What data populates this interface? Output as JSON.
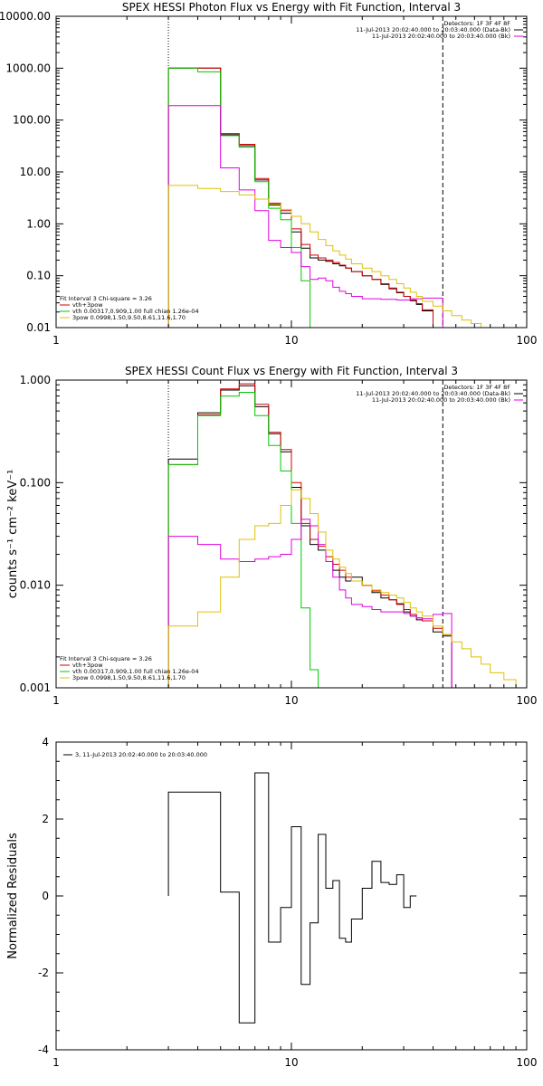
{
  "chart_data": [
    {
      "type": "line",
      "title": "SPEX HESSI Photon Flux vs Energy with Fit Function, Interval 3",
      "ylabel": "",
      "xlabel": "",
      "xscale": "log",
      "yscale": "log",
      "xlim": [
        1,
        100
      ],
      "ylim": [
        0.01,
        10000
      ],
      "xtick_labels": [
        "1",
        "10",
        "100"
      ],
      "ytick_labels": [
        "0.01",
        "0.10",
        "1.00",
        "10.00",
        "100.00",
        "1000.00",
        "10000.00"
      ],
      "vlines": [
        3.0,
        44.0
      ],
      "legend_top_right": [
        "Detectors: 1F 3F 4F 8F",
        "11-Jul-2013 20:02:40.000 to 20:03:40.000 (Data-Bk)",
        "11-Jul-2013 20:02:40.000 to 20:03:40.000 (Bk)"
      ],
      "legend_bottom_left": [
        "Fit Interval 3   Chi-square = 3.26",
        "vth+3pow",
        "vth 0.00317,0.909,1.00  full chian 1.26e-04",
        "3pow 0.0998,1.50,9.50,8.61,11.6,1.70"
      ],
      "edges": [
        3.0,
        4.0,
        5.0,
        6.0,
        7.0,
        8.0,
        9.0,
        10.0,
        11.0,
        12.0,
        13.0,
        14.0,
        15.0,
        16.0,
        17.0,
        18.0,
        20.0,
        22.0,
        24.0,
        26.0,
        28.0,
        30.0,
        32.0,
        34.0,
        36.0,
        40.0,
        44.0,
        48.0,
        53.0,
        58.0,
        64.0,
        70.0
      ],
      "series": [
        {
          "name": "",
          "color": "#000000",
          "values": [
            1000,
            1000,
            52,
            32,
            7,
            2.3,
            1.6,
            0.7,
            0.34,
            0.22,
            0.2,
            0.19,
            0.17,
            0.155,
            0.14,
            0.12,
            0.1,
            0.085,
            0.068,
            0.056,
            0.047,
            0.04,
            0.033,
            0.028,
            0.021
          ]
        },
        {
          "name": "",
          "color": "#d00000",
          "values": [
            1000,
            1000,
            55,
            34,
            7.5,
            2.5,
            1.8,
            0.8,
            0.4,
            0.25,
            0.22,
            0.2,
            0.18,
            0.16,
            0.14,
            0.12,
            0.1,
            0.085,
            0.07,
            0.058,
            0.048,
            0.04,
            0.034,
            0.029,
            0.022
          ]
        },
        {
          "name": "",
          "color": "#00c800",
          "values": [
            1000,
            850,
            50,
            30,
            6.5,
            2.0,
            1.2,
            0.35,
            0.08,
            0.01
          ]
        },
        {
          "name": "",
          "color": "#e000e0",
          "values": [
            190,
            190,
            12,
            4.5,
            1.8,
            0.48,
            0.35,
            0.28,
            0.15,
            0.085,
            0.09,
            0.08,
            0.06,
            0.05,
            0.045,
            0.04,
            0.036,
            0.036,
            0.035,
            0.035,
            0.034,
            0.034,
            0.036,
            0.036,
            0.037,
            0.037
          ]
        },
        {
          "name": "",
          "color": "#e0c000",
          "values": [
            5.5,
            4.8,
            4.2,
            3.6,
            3.0,
            2.4,
            1.9,
            1.4,
            1.0,
            0.7,
            0.5,
            0.38,
            0.3,
            0.25,
            0.21,
            0.17,
            0.14,
            0.12,
            0.1,
            0.085,
            0.07,
            0.058,
            0.048,
            0.04,
            0.032,
            0.026,
            0.021,
            0.017,
            0.014,
            0.012,
            0.01
          ]
        }
      ]
    },
    {
      "type": "line",
      "title": "SPEX HESSI Count Flux vs Energy with Fit Function, Interval 3",
      "ylabel": "counts s⁻¹ cm⁻² keV⁻¹",
      "xlabel": "",
      "xscale": "log",
      "yscale": "log",
      "xlim": [
        1,
        100
      ],
      "ylim": [
        0.001,
        1.0
      ],
      "xtick_labels": [
        "1",
        "10",
        "100"
      ],
      "ytick_labels": [
        "0.001",
        "0.010",
        "0.100",
        "1.000"
      ],
      "vlines": [
        3.0,
        44.0
      ],
      "legend_top_right": [
        "Detectors: 1F 3F 4F 8F",
        "11-Jul-2013 20:02:40.000 to 20:03:40.000 (Data-Bk)",
        "11-Jul-2013 20:02:40.000 to 20:03:40.000 (Bk)"
      ],
      "legend_bottom_left": [
        "Fit Interval 3   Chi-square = 3.26",
        "vth+3pow",
        "vth 0.00317,0.909,1.00  full chian 1.26e-04",
        "3pow 0.0998,1.50,9.50,8.61,11.6,1.70"
      ],
      "edges": [
        3.0,
        4.0,
        5.0,
        6.0,
        7.0,
        8.0,
        9.0,
        10.0,
        11.0,
        12.0,
        13.0,
        14.0,
        15.0,
        16.0,
        17.0,
        18.0,
        20.0,
        22.0,
        24.0,
        26.0,
        28.0,
        30.0,
        32.0,
        34.0,
        36.0,
        40.0,
        44.0,
        48.0,
        53.0,
        58.0,
        64.0,
        70.0,
        80.0,
        90.0
      ],
      "series": [
        {
          "name": "",
          "color": "#000000",
          "values": [
            0.17,
            0.48,
            0.8,
            0.88,
            0.55,
            0.3,
            0.2,
            0.09,
            0.038,
            0.025,
            0.022,
            0.017,
            0.014,
            0.012,
            0.011,
            0.012,
            0.01,
            0.0085,
            0.0075,
            0.0072,
            0.0066,
            0.0055,
            0.005,
            0.0046,
            0.0045,
            0.0035,
            0.0032
          ]
        },
        {
          "name": "",
          "color": "#d00000",
          "values": [
            0.15,
            0.46,
            0.82,
            0.92,
            0.58,
            0.31,
            0.21,
            0.1,
            0.04,
            0.028,
            0.024,
            0.019,
            0.016,
            0.014,
            0.012,
            0.011,
            0.01,
            0.0088,
            0.008,
            0.0072,
            0.0065,
            0.0058,
            0.0052,
            0.0048,
            0.0045,
            0.0038,
            0.0033
          ]
        },
        {
          "name": "",
          "color": "#00c800",
          "values": [
            0.15,
            0.45,
            0.7,
            0.76,
            0.45,
            0.23,
            0.13,
            0.04,
            0.006,
            0.0015
          ]
        },
        {
          "name": "",
          "color": "#e000e0",
          "values": [
            0.03,
            0.025,
            0.018,
            0.017,
            0.018,
            0.019,
            0.02,
            0.028,
            0.044,
            0.038,
            0.025,
            0.017,
            0.012,
            0.009,
            0.0075,
            0.0065,
            0.0062,
            0.0058,
            0.0055,
            0.0055,
            0.0055,
            0.0053,
            0.005,
            0.0048,
            0.0047,
            0.0052,
            0.0053
          ]
        },
        {
          "name": "",
          "color": "#e0c000",
          "values": [
            0.004,
            0.0055,
            0.012,
            0.028,
            0.038,
            0.04,
            0.06,
            0.085,
            0.07,
            0.05,
            0.033,
            0.022,
            0.018,
            0.015,
            0.013,
            0.011,
            0.01,
            0.009,
            0.0085,
            0.008,
            0.0075,
            0.0068,
            0.006,
            0.0055,
            0.005,
            0.004,
            0.0033,
            0.0028,
            0.0024,
            0.002,
            0.0017,
            0.0014,
            0.0012
          ]
        }
      ]
    },
    {
      "type": "line",
      "title": "",
      "ylabel": "Normalized Residuals",
      "xlabel": "",
      "xscale": "log",
      "yscale": "linear",
      "xlim": [
        1,
        100
      ],
      "ylim": [
        -4,
        4
      ],
      "xtick_labels": [
        "1",
        "10",
        "100"
      ],
      "ytick_labels": [
        "-4",
        "-2",
        "0",
        "2",
        "4"
      ],
      "legend": "3, 11-Jul-2013 20:02:40.000 to 20:03:40.000",
      "edges": [
        3.0,
        4.0,
        5.0,
        6.0,
        7.0,
        8.0,
        9.0,
        10.0,
        11.0,
        12.0,
        13.0,
        14.0,
        15.0,
        16.0,
        17.0,
        18.0,
        20.0,
        22.0,
        24.0,
        26.0,
        28.0,
        30.0,
        32.0,
        34.0,
        36.0,
        40.0,
        44.0
      ],
      "series": [
        {
          "name": "",
          "color": "#000000",
          "values": [
            2.7,
            2.7,
            0.1,
            -3.3,
            3.2,
            -1.2,
            -0.3,
            1.8,
            -2.3,
            -0.7,
            1.6,
            0.2,
            0.4,
            -1.1,
            -1.2,
            -0.6,
            0.2,
            0.9,
            0.35,
            0.3,
            0.55,
            -0.3,
            0.0
          ]
        }
      ]
    }
  ]
}
